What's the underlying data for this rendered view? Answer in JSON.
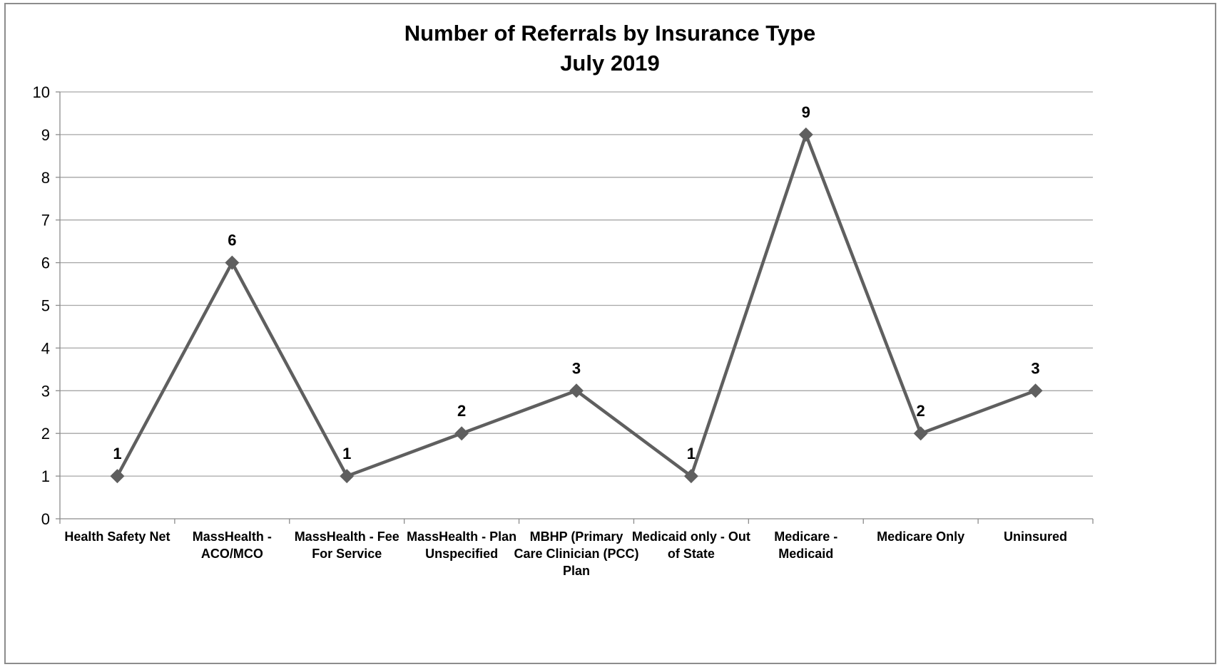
{
  "chart_data": {
    "type": "line",
    "title": "Number of Referrals by Insurance Type",
    "subtitle": "July 2019",
    "xlabel": "",
    "ylabel": "",
    "ylim": [
      0,
      10
    ],
    "yticks": [
      "0",
      "1",
      "2",
      "3",
      "4",
      "5",
      "6",
      "7",
      "8",
      "9",
      "10"
    ],
    "grid": true,
    "legend": "none",
    "marker": "diamond",
    "colors": {
      "line": "#5f5f5f",
      "grid": "#a6a6a6",
      "axis": "#8c8c8c"
    },
    "categories": [
      "Health Safety Net",
      "MassHealth - ACO/MCO",
      "MassHealth - Fee For Service",
      "MassHealth - Plan Unspecified",
      "MBHP (Primary Care Clinician (PCC) Plan",
      "Medicaid only - Out of State",
      "Medicare - Medicaid",
      "Medicare Only",
      "Uninsured"
    ],
    "category_lines": [
      [
        "Health Safety Net"
      ],
      [
        "MassHealth -",
        "ACO/MCO"
      ],
      [
        "MassHealth - Fee",
        "For Service"
      ],
      [
        "MassHealth - Plan",
        "Unspecified"
      ],
      [
        "MBHP (Primary",
        "Care Clinician (PCC)",
        "Plan"
      ],
      [
        "Medicaid only - Out",
        "of State"
      ],
      [
        "Medicare -",
        "Medicaid"
      ],
      [
        "Medicare Only"
      ],
      [
        "Uninsured"
      ]
    ],
    "series": [
      {
        "values": [
          1,
          6,
          1,
          2,
          3,
          1,
          9,
          2,
          3
        ],
        "data_labels": [
          "1",
          "6",
          "1",
          "2",
          "3",
          "1",
          "9",
          "2",
          "3"
        ]
      }
    ]
  }
}
